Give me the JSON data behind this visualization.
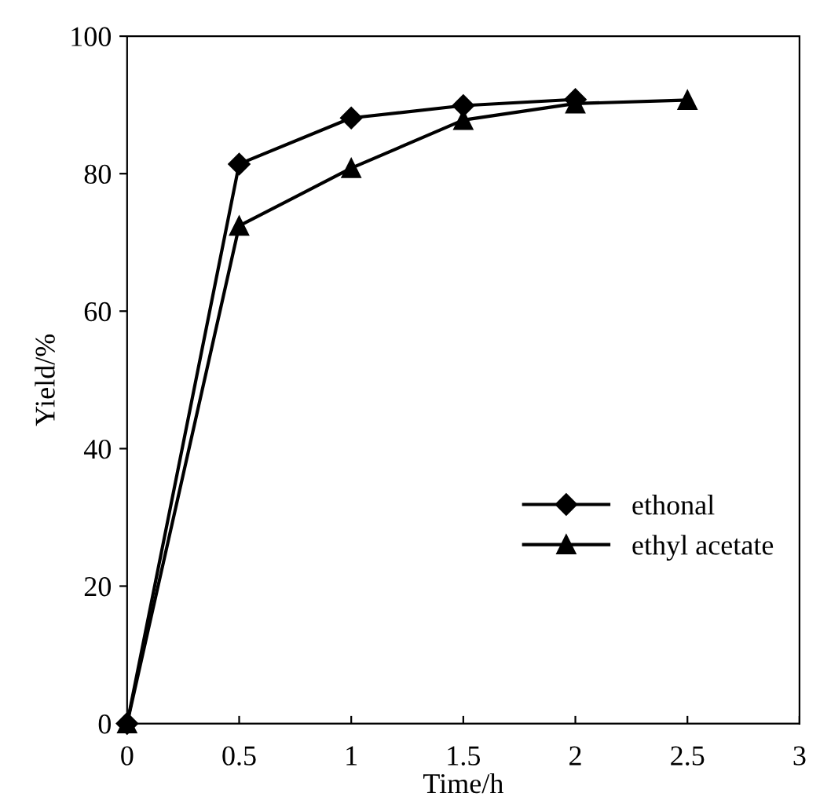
{
  "chart_data": {
    "type": "line",
    "xlabel": "Time/h",
    "ylabel": "Yield/%",
    "xlim": [
      0,
      3
    ],
    "xticks": [
      0,
      0.5,
      1,
      1.5,
      2,
      2.5,
      3
    ],
    "ylim": [
      0,
      100
    ],
    "yticks": [
      0,
      20,
      40,
      60,
      80,
      100
    ],
    "grid": false,
    "legend": "bottom right",
    "line_style": "solid",
    "series": [
      {
        "name": "ethonal",
        "color": "#000000",
        "marker": "diamond",
        "x": [
          0,
          0.5,
          1,
          1.5,
          2
        ],
        "values": [
          0,
          81.4,
          88.1,
          89.9,
          90.8
        ]
      },
      {
        "name": "ethyl acetate",
        "color": "#000000",
        "marker": "triangle",
        "x": [
          0,
          0.5,
          1,
          1.5,
          2,
          2.5
        ],
        "values": [
          0,
          72.4,
          80.8,
          87.8,
          90.2,
          90.7
        ]
      }
    ]
  }
}
